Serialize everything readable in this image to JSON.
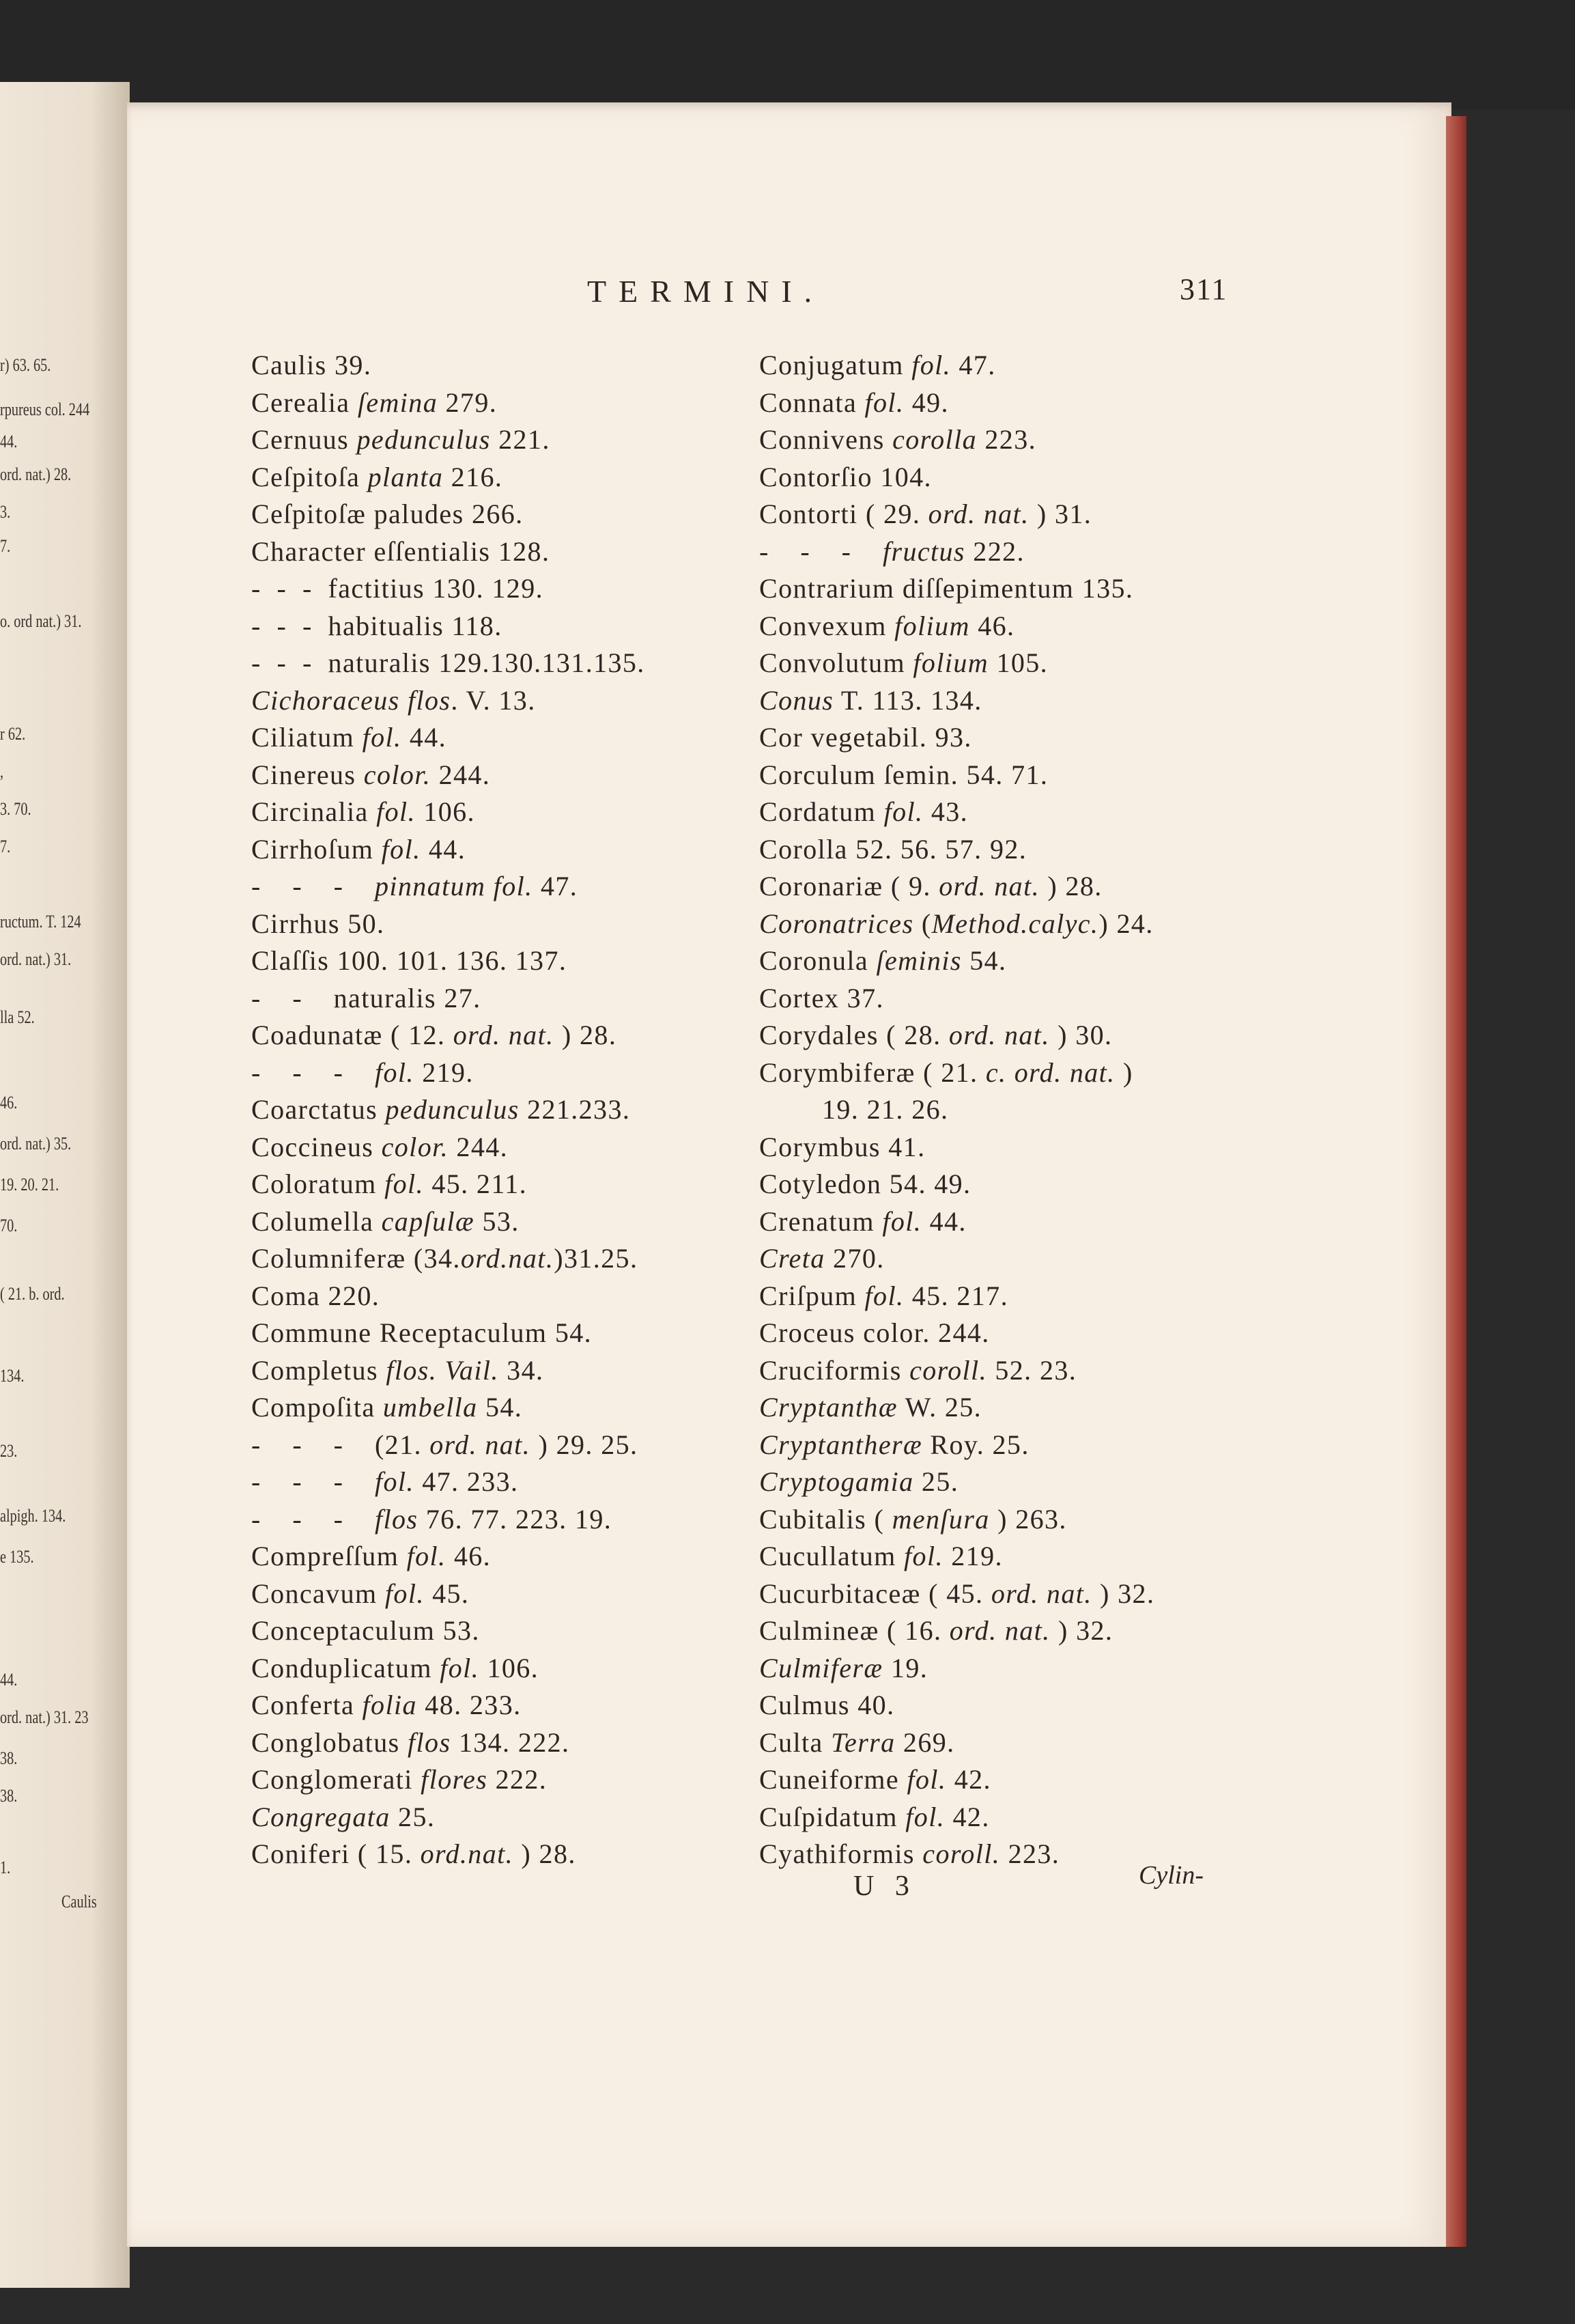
{
  "running_head": "TERMINI.",
  "page_number": "311",
  "left_column": [
    [
      {
        "text": "Caulis 39."
      }
    ],
    [
      {
        "text": "Cerealia "
      },
      {
        "text": "ſemina",
        "italic": true
      },
      {
        "text": " 279."
      }
    ],
    [
      {
        "text": "Cernuus "
      },
      {
        "text": "pedunculus",
        "italic": true
      },
      {
        "text": " 221."
      }
    ],
    [
      {
        "text": "Ceſpitoſa "
      },
      {
        "text": "planta",
        "italic": true
      },
      {
        "text": " 216."
      }
    ],
    [
      {
        "text": "Ceſpitoſæ paludes 266."
      }
    ],
    [
      {
        "text": "Character eſſentialis 128."
      }
    ],
    [
      {
        "text": "-  -  -  factitius 130. 129."
      }
    ],
    [
      {
        "text": "-  -  -  habitualis 118."
      }
    ],
    [
      {
        "text": "-  -  -  naturalis 129.130.131.135."
      }
    ],
    [
      {
        "text": "Cichoraceus flos",
        "italic": true
      },
      {
        "text": ". V. 13."
      }
    ],
    [
      {
        "text": "Ciliatum "
      },
      {
        "text": "fol.",
        "italic": true
      },
      {
        "text": " 44."
      }
    ],
    [
      {
        "text": "Cinereus "
      },
      {
        "text": "color.",
        "italic": true
      },
      {
        "text": " 244."
      }
    ],
    [
      {
        "text": "Circinalia "
      },
      {
        "text": "fol.",
        "italic": true
      },
      {
        "text": " 106."
      }
    ],
    [
      {
        "text": "Cirrhoſum "
      },
      {
        "text": "fol.",
        "italic": true
      },
      {
        "text": " 44."
      }
    ],
    [
      {
        "text": "-    -    -    "
      },
      {
        "text": "pinnatum fol.",
        "italic": true
      },
      {
        "text": " 47."
      }
    ],
    [
      {
        "text": "Cirrhus 50."
      }
    ],
    [
      {
        "text": "Claſſis 100. 101. 136. 137."
      }
    ],
    [
      {
        "text": "-    -    naturalis 27."
      }
    ],
    [
      {
        "text": "Coadunatæ ( 12. "
      },
      {
        "text": "ord. nat.",
        "italic": true
      },
      {
        "text": " ) 28."
      }
    ],
    [
      {
        "text": "-    -    -    "
      },
      {
        "text": "fol.",
        "italic": true
      },
      {
        "text": " 219."
      }
    ],
    [
      {
        "text": "Coarctatus "
      },
      {
        "text": "pedunculus",
        "italic": true
      },
      {
        "text": " 221.233."
      }
    ],
    [
      {
        "text": "Coccineus "
      },
      {
        "text": "color.",
        "italic": true
      },
      {
        "text": " 244."
      }
    ],
    [
      {
        "text": "Coloratum "
      },
      {
        "text": "fol.",
        "italic": true
      },
      {
        "text": " 45. 211."
      }
    ],
    [
      {
        "text": "Columella "
      },
      {
        "text": "capſulæ",
        "italic": true
      },
      {
        "text": " 53."
      }
    ],
    [
      {
        "text": "Columniferæ (34."
      },
      {
        "text": "ord.nat.",
        "italic": true
      },
      {
        "text": ")31.25."
      }
    ],
    [
      {
        "text": "Coma 220."
      }
    ],
    [
      {
        "text": "Commune Receptaculum 54."
      }
    ],
    [
      {
        "text": "Completus "
      },
      {
        "text": "flos. Vail.",
        "italic": true
      },
      {
        "text": " 34."
      }
    ],
    [
      {
        "text": "Compoſita "
      },
      {
        "text": "umbella",
        "italic": true
      },
      {
        "text": " 54."
      }
    ],
    [
      {
        "text": "-    -    -    (21. "
      },
      {
        "text": "ord. nat.",
        "italic": true
      },
      {
        "text": " ) 29. 25."
      }
    ],
    [
      {
        "text": "-    -    -    "
      },
      {
        "text": "fol.",
        "italic": true
      },
      {
        "text": " 47. 233."
      }
    ],
    [
      {
        "text": "-    -    -    "
      },
      {
        "text": "flos",
        "italic": true
      },
      {
        "text": " 76. 77. 223. 19."
      }
    ],
    [
      {
        "text": "Compreſſum "
      },
      {
        "text": "fol.",
        "italic": true
      },
      {
        "text": " 46."
      }
    ],
    [
      {
        "text": "Concavum "
      },
      {
        "text": "fol.",
        "italic": true
      },
      {
        "text": " 45."
      }
    ],
    [
      {
        "text": "Conceptaculum 53."
      }
    ],
    [
      {
        "text": "Conduplicatum "
      },
      {
        "text": "fol.",
        "italic": true
      },
      {
        "text": " 106."
      }
    ],
    [
      {
        "text": "Conferta "
      },
      {
        "text": "folia",
        "italic": true
      },
      {
        "text": " 48. 233."
      }
    ],
    [
      {
        "text": "Conglobatus "
      },
      {
        "text": "flos",
        "italic": true
      },
      {
        "text": " 134. 222."
      }
    ],
    [
      {
        "text": "Conglomerati "
      },
      {
        "text": "flores",
        "italic": true
      },
      {
        "text": " 222."
      }
    ],
    [
      {
        "text": "Congregata",
        "italic": true
      },
      {
        "text": " 25."
      }
    ],
    [
      {
        "text": "Coniferi ( 15. "
      },
      {
        "text": "ord.nat.",
        "italic": true
      },
      {
        "text": " ) 28."
      }
    ]
  ],
  "right_column": [
    [
      {
        "text": "Conjugatum "
      },
      {
        "text": "fol.",
        "italic": true
      },
      {
        "text": " 47."
      }
    ],
    [
      {
        "text": "Connata "
      },
      {
        "text": "fol.",
        "italic": true
      },
      {
        "text": " 49."
      }
    ],
    [
      {
        "text": "Connivens "
      },
      {
        "text": "corolla",
        "italic": true
      },
      {
        "text": " 223."
      }
    ],
    [
      {
        "text": "Contorſio 104."
      }
    ],
    [
      {
        "text": "Contorti ( 29. "
      },
      {
        "text": "ord. nat.",
        "italic": true
      },
      {
        "text": " ) 31."
      }
    ],
    [
      {
        "text": "-    -    -    "
      },
      {
        "text": "fructus",
        "italic": true
      },
      {
        "text": " 222."
      }
    ],
    [
      {
        "text": "Contrarium diſſepimentum 135."
      }
    ],
    [
      {
        "text": "Convexum "
      },
      {
        "text": "folium",
        "italic": true
      },
      {
        "text": " 46."
      }
    ],
    [
      {
        "text": "Convolutum "
      },
      {
        "text": "folium",
        "italic": true
      },
      {
        "text": " 105."
      }
    ],
    [
      {
        "text": "Conus",
        "italic": true
      },
      {
        "text": " T. 113. 134."
      }
    ],
    [
      {
        "text": "Cor vegetabil. 93."
      }
    ],
    [
      {
        "text": "Corculum ſemin. 54. 71."
      }
    ],
    [
      {
        "text": "Cordatum "
      },
      {
        "text": "fol.",
        "italic": true
      },
      {
        "text": " 43."
      }
    ],
    [
      {
        "text": "Corolla 52. 56. 57. 92."
      }
    ],
    [
      {
        "text": "Coronariæ ( 9. "
      },
      {
        "text": "ord. nat.",
        "italic": true
      },
      {
        "text": " ) 28."
      }
    ],
    [
      {
        "text": "Coronatrices",
        "italic": true
      },
      {
        "text": " ("
      },
      {
        "text": "Method.calyc.",
        "italic": true
      },
      {
        "text": ") 24."
      }
    ],
    [
      {
        "text": "Coronula "
      },
      {
        "text": "ſeminis",
        "italic": true
      },
      {
        "text": " 54."
      }
    ],
    [
      {
        "text": "Cortex 37."
      }
    ],
    [
      {
        "text": "Corydales ( 28. "
      },
      {
        "text": "ord. nat.",
        "italic": true
      },
      {
        "text": " ) 30."
      }
    ],
    [
      {
        "text": "Corymbiferæ ( 21. "
      },
      {
        "text": "c. ord. nat.",
        "italic": true
      },
      {
        "text": " )"
      }
    ],
    [
      {
        "text": "19. 21. 26.",
        "continuation": true
      }
    ],
    [
      {
        "text": "Corymbus 41."
      }
    ],
    [
      {
        "text": "Cotyledon 54. 49."
      }
    ],
    [
      {
        "text": "Crenatum "
      },
      {
        "text": "fol.",
        "italic": true
      },
      {
        "text": " 44."
      }
    ],
    [
      {
        "text": "Creta",
        "italic": true
      },
      {
        "text": " 270."
      }
    ],
    [
      {
        "text": "Criſpum "
      },
      {
        "text": "fol.",
        "italic": true
      },
      {
        "text": " 45. 217."
      }
    ],
    [
      {
        "text": "Croceus color. 244."
      }
    ],
    [
      {
        "text": "Cruciformis "
      },
      {
        "text": "coroll.",
        "italic": true
      },
      {
        "text": " 52. 23."
      }
    ],
    [
      {
        "text": "Cryptanthæ",
        "italic": true
      },
      {
        "text": " W. 25."
      }
    ],
    [
      {
        "text": "Cryptantheræ",
        "italic": true
      },
      {
        "text": " Roy. 25."
      }
    ],
    [
      {
        "text": "Cryptogamia",
        "italic": true
      },
      {
        "text": " 25."
      }
    ],
    [
      {
        "text": "Cubitalis ( "
      },
      {
        "text": "menſura",
        "italic": true
      },
      {
        "text": " ) 263."
      }
    ],
    [
      {
        "text": "Cucullatum "
      },
      {
        "text": "fol.",
        "italic": true
      },
      {
        "text": " 219."
      }
    ],
    [
      {
        "text": "Cucurbitaceæ ( 45. "
      },
      {
        "text": "ord. nat.",
        "italic": true
      },
      {
        "text": " ) 32."
      }
    ],
    [
      {
        "text": "Culmineæ ( 16. "
      },
      {
        "text": "ord. nat.",
        "italic": true
      },
      {
        "text": " ) 32."
      }
    ],
    [
      {
        "text": "Culmiferæ",
        "italic": true
      },
      {
        "text": " 19."
      }
    ],
    [
      {
        "text": "Culmus 40."
      }
    ],
    [
      {
        "text": "Culta "
      },
      {
        "text": "Terra",
        "italic": true
      },
      {
        "text": " 269."
      }
    ],
    [
      {
        "text": "Cuneiforme "
      },
      {
        "text": "fol.",
        "italic": true
      },
      {
        "text": " 42."
      }
    ],
    [
      {
        "text": "Cuſpidatum "
      },
      {
        "text": "fol.",
        "italic": true
      },
      {
        "text": " 42."
      }
    ],
    [
      {
        "text": "Cyathiformis "
      },
      {
        "text": "coroll.",
        "italic": true
      },
      {
        "text": " 223."
      }
    ]
  ],
  "signature_mark": "U 3",
  "catchword": "Cylin-",
  "left_page_fragments": [
    "r) 63. 65.",
    "rpureus col. 244",
    "44.",
    "ord. nat.) 28.",
    "3.",
    "7.",
    "o. ord nat.) 31.",
    "r 62.",
    ",",
    "3. 70.",
    "7.",
    "ructum. T. 124",
    "ord. nat.) 31.",
    "lla 52.",
    "46.",
    "ord. nat.) 35.",
    "19. 20. 21.",
    "70.",
    "( 21. b. ord.",
    "134.",
    "23.",
    "alpigh. 134.",
    "e 135.",
    "44.",
    "ord. nat.) 31. 23",
    "38.",
    "38.",
    "1.",
    "Caulis"
  ],
  "colors": {
    "paper": "#f7efe4",
    "ink": "#2b2622",
    "page_edge": "#a8443a",
    "background": "#2a2a2a"
  }
}
